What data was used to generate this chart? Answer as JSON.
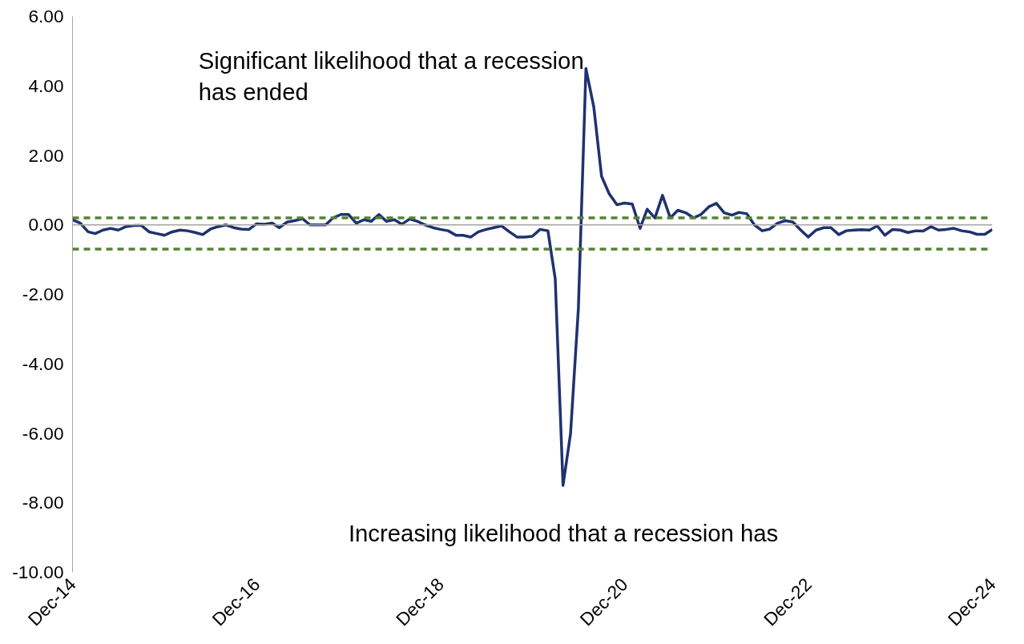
{
  "chart_data": {
    "type": "line",
    "annotations": [
      "Significant likelihood that a recession has ended",
      "Increasing likelihood that a recession has"
    ],
    "x": [
      "2014-12",
      "2015-01",
      "2015-02",
      "2015-03",
      "2015-04",
      "2015-05",
      "2015-06",
      "2015-07",
      "2015-08",
      "2015-09",
      "2015-10",
      "2015-11",
      "2015-12",
      "2016-01",
      "2016-02",
      "2016-03",
      "2016-04",
      "2016-05",
      "2016-06",
      "2016-07",
      "2016-08",
      "2016-09",
      "2016-10",
      "2016-11",
      "2016-12",
      "2017-01",
      "2017-02",
      "2017-03",
      "2017-04",
      "2017-05",
      "2017-06",
      "2017-07",
      "2017-08",
      "2017-09",
      "2017-10",
      "2017-11",
      "2017-12",
      "2018-01",
      "2018-02",
      "2018-03",
      "2018-04",
      "2018-05",
      "2018-06",
      "2018-07",
      "2018-08",
      "2018-09",
      "2018-10",
      "2018-11",
      "2018-12",
      "2019-01",
      "2019-02",
      "2019-03",
      "2019-04",
      "2019-05",
      "2019-06",
      "2019-07",
      "2019-08",
      "2019-09",
      "2019-10",
      "2019-11",
      "2019-12",
      "2020-01",
      "2020-02",
      "2020-03",
      "2020-04",
      "2020-05",
      "2020-06",
      "2020-07",
      "2020-08",
      "2020-09",
      "2020-10",
      "2020-11",
      "2020-12",
      "2021-01",
      "2021-02",
      "2021-03",
      "2021-04",
      "2021-05",
      "2021-06",
      "2021-07",
      "2021-08",
      "2021-09",
      "2021-10",
      "2021-11",
      "2021-12",
      "2022-01",
      "2022-02",
      "2022-03",
      "2022-04",
      "2022-05",
      "2022-06",
      "2022-07",
      "2022-08",
      "2022-09",
      "2022-10",
      "2022-11",
      "2022-12",
      "2023-01",
      "2023-02",
      "2023-03",
      "2023-04",
      "2023-05",
      "2023-06",
      "2023-07",
      "2023-08",
      "2023-09",
      "2023-10",
      "2023-11",
      "2023-12",
      "2024-01",
      "2024-02",
      "2024-03",
      "2024-04",
      "2024-05",
      "2024-06",
      "2024-07",
      "2024-08",
      "2024-09",
      "2024-10",
      "2024-11",
      "2024-12"
    ],
    "series": [
      {
        "color": "#1f3270",
        "values": [
          0.15,
          0.05,
          -0.2,
          -0.25,
          -0.15,
          -0.1,
          -0.15,
          -0.05,
          -0.02,
          -0.02,
          -0.2,
          -0.25,
          -0.3,
          -0.2,
          -0.15,
          -0.17,
          -0.22,
          -0.28,
          -0.12,
          -0.05,
          0.0,
          -0.08,
          -0.12,
          -0.13,
          0.03,
          0.02,
          0.05,
          -0.08,
          0.08,
          0.12,
          0.18,
          0.0,
          0.0,
          0.0,
          0.2,
          0.3,
          0.3,
          0.05,
          0.15,
          0.1,
          0.3,
          0.1,
          0.15,
          0.02,
          0.17,
          0.1,
          0.0,
          -0.08,
          -0.13,
          -0.17,
          -0.3,
          -0.3,
          -0.35,
          -0.2,
          -0.13,
          -0.08,
          -0.03,
          -0.2,
          -0.35,
          -0.35,
          -0.33,
          -0.13,
          -0.17,
          -1.55,
          -7.5,
          -6.0,
          -2.4,
          4.5,
          3.4,
          1.4,
          0.9,
          0.58,
          0.63,
          0.6,
          -0.1,
          0.45,
          0.2,
          0.85,
          0.2,
          0.42,
          0.35,
          0.2,
          0.3,
          0.52,
          0.62,
          0.35,
          0.28,
          0.36,
          0.32,
          0.0,
          -0.17,
          -0.12,
          0.05,
          0.12,
          0.08,
          -0.15,
          -0.35,
          -0.15,
          -0.08,
          -0.08,
          -0.28,
          -0.17,
          -0.15,
          -0.14,
          -0.15,
          -0.03,
          -0.3,
          -0.13,
          -0.15,
          -0.22,
          -0.17,
          -0.18,
          -0.05,
          -0.15,
          -0.13,
          -0.1,
          -0.17,
          -0.2,
          -0.27,
          -0.27,
          -0.13
        ]
      }
    ],
    "xlim": [
      "2014-12",
      "2024-12"
    ],
    "xticks": [
      {
        "value": "2014-12",
        "label": "Dec-14"
      },
      {
        "value": "2016-12",
        "label": "Dec-16"
      },
      {
        "value": "2018-12",
        "label": "Dec-18"
      },
      {
        "value": "2020-12",
        "label": "Dec-20"
      },
      {
        "value": "2022-12",
        "label": "Dec-22"
      },
      {
        "value": "2024-12",
        "label": "Dec-24"
      }
    ],
    "ylim": [
      -10,
      6
    ],
    "yticks": [
      {
        "value": -10,
        "label": "-10.00"
      },
      {
        "value": -8,
        "label": "-8.00"
      },
      {
        "value": -6,
        "label": "-6.00"
      },
      {
        "value": -4,
        "label": "-4.00"
      },
      {
        "value": -2,
        "label": "-2.00"
      },
      {
        "value": 0,
        "label": "0.00"
      },
      {
        "value": 2,
        "label": "2.00"
      },
      {
        "value": 4,
        "label": "4.00"
      },
      {
        "value": 6,
        "label": "6.00"
      }
    ],
    "ref_lines": [
      {
        "axis": "y",
        "value": 0,
        "color": "#a6a6a6",
        "line_style": "solid"
      },
      {
        "axis": "y",
        "value": 0.2,
        "color": "#548235",
        "line_style": "dashed"
      },
      {
        "axis": "y",
        "value": -0.7,
        "color": "#548235",
        "line_style": "dashed"
      }
    ],
    "grid": false,
    "marker": "none",
    "line_style": "solid"
  }
}
